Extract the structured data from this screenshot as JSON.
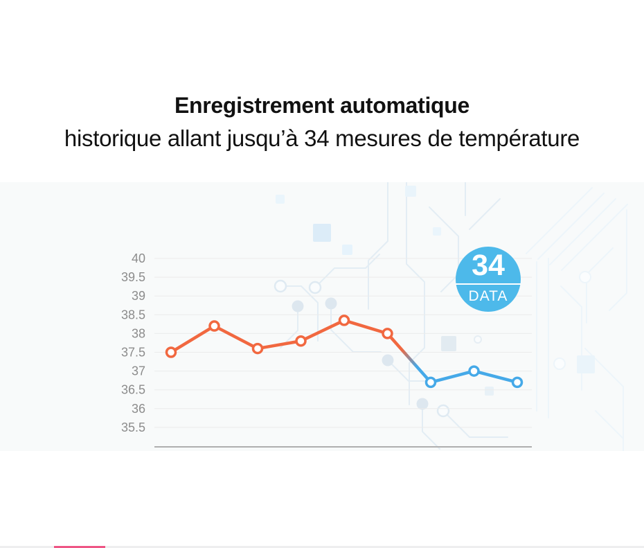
{
  "header": {
    "title": "Enregistrement automatique",
    "subtitle": "historique allant jusqu’à 34 mesures de température"
  },
  "badge": {
    "value": "34",
    "label": "DATA"
  },
  "chart_data": {
    "type": "line",
    "title": "",
    "xlabel": "",
    "ylabel": "",
    "ylim": [
      35.5,
      40
    ],
    "yticks": [
      40,
      39.5,
      39,
      38.5,
      38,
      37.5,
      37,
      36.5,
      36,
      35.5
    ],
    "ytick_labels": [
      "40",
      "39.5",
      "39",
      "38.5",
      "38",
      "37.5",
      "37",
      "36.5",
      "36",
      "35.5"
    ],
    "grid": true,
    "legend_position": "none",
    "marker": "open-circle-white-fill",
    "series": [
      {
        "name": "older-measurements",
        "color": "#F16840",
        "values": [
          37.5,
          38.2,
          37.6,
          37.8,
          38.35,
          38.0
        ]
      },
      {
        "name": "recent-measurements",
        "color": "#45A9E8",
        "values": [
          36.7,
          37.0,
          36.7
        ]
      }
    ],
    "transition": "color gradient on segment between point 6 and point 7"
  },
  "progress_bar": {
    "track_color": "#EEEEEF",
    "fill_color": "#EE5585"
  },
  "colors": {
    "badge_bg": "#4DB9EA",
    "orange_line": "#F16840",
    "blue_line": "#45A9E8",
    "axis_label": "#8C8C8C",
    "gridline": "#EBEBEB",
    "baseline": "#AFAFAF",
    "panel_bg": "#F8FAFA",
    "title_text": "#111111"
  }
}
